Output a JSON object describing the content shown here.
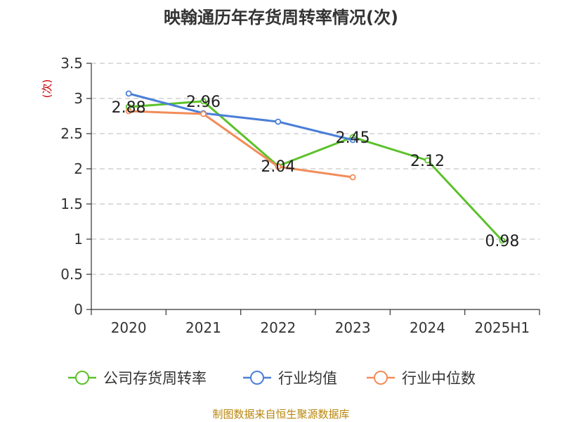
{
  "chart_data": {
    "type": "line",
    "title": "映翰通历年存货周转率情况(次)",
    "ylabel": "(次)",
    "categories": [
      "2020",
      "2021",
      "2022",
      "2023",
      "2024",
      "2025H1"
    ],
    "ylim": [
      0,
      3.5
    ],
    "yticks": [
      "0",
      "0.5",
      "1",
      "1.5",
      "2",
      "2.5",
      "3",
      "3.5"
    ],
    "grid": true,
    "legend_position": "bottom",
    "series": [
      {
        "name": "公司存货周转率",
        "color": "#5bc12a",
        "values": [
          2.88,
          2.96,
          2.04,
          2.45,
          2.12,
          0.98
        ],
        "labels": [
          "2.88",
          "2.96",
          "2.04",
          "2.45",
          "2.12",
          "0.98"
        ]
      },
      {
        "name": "行业均值",
        "color": "#4a7fd8",
        "values": [
          3.07,
          2.79,
          2.67,
          2.41,
          null,
          null
        ]
      },
      {
        "name": "行业中位数",
        "color": "#f28c5a",
        "values": [
          2.82,
          2.78,
          2.03,
          1.88,
          null,
          null
        ]
      }
    ]
  },
  "source": "制图数据来自恒生聚源数据库"
}
